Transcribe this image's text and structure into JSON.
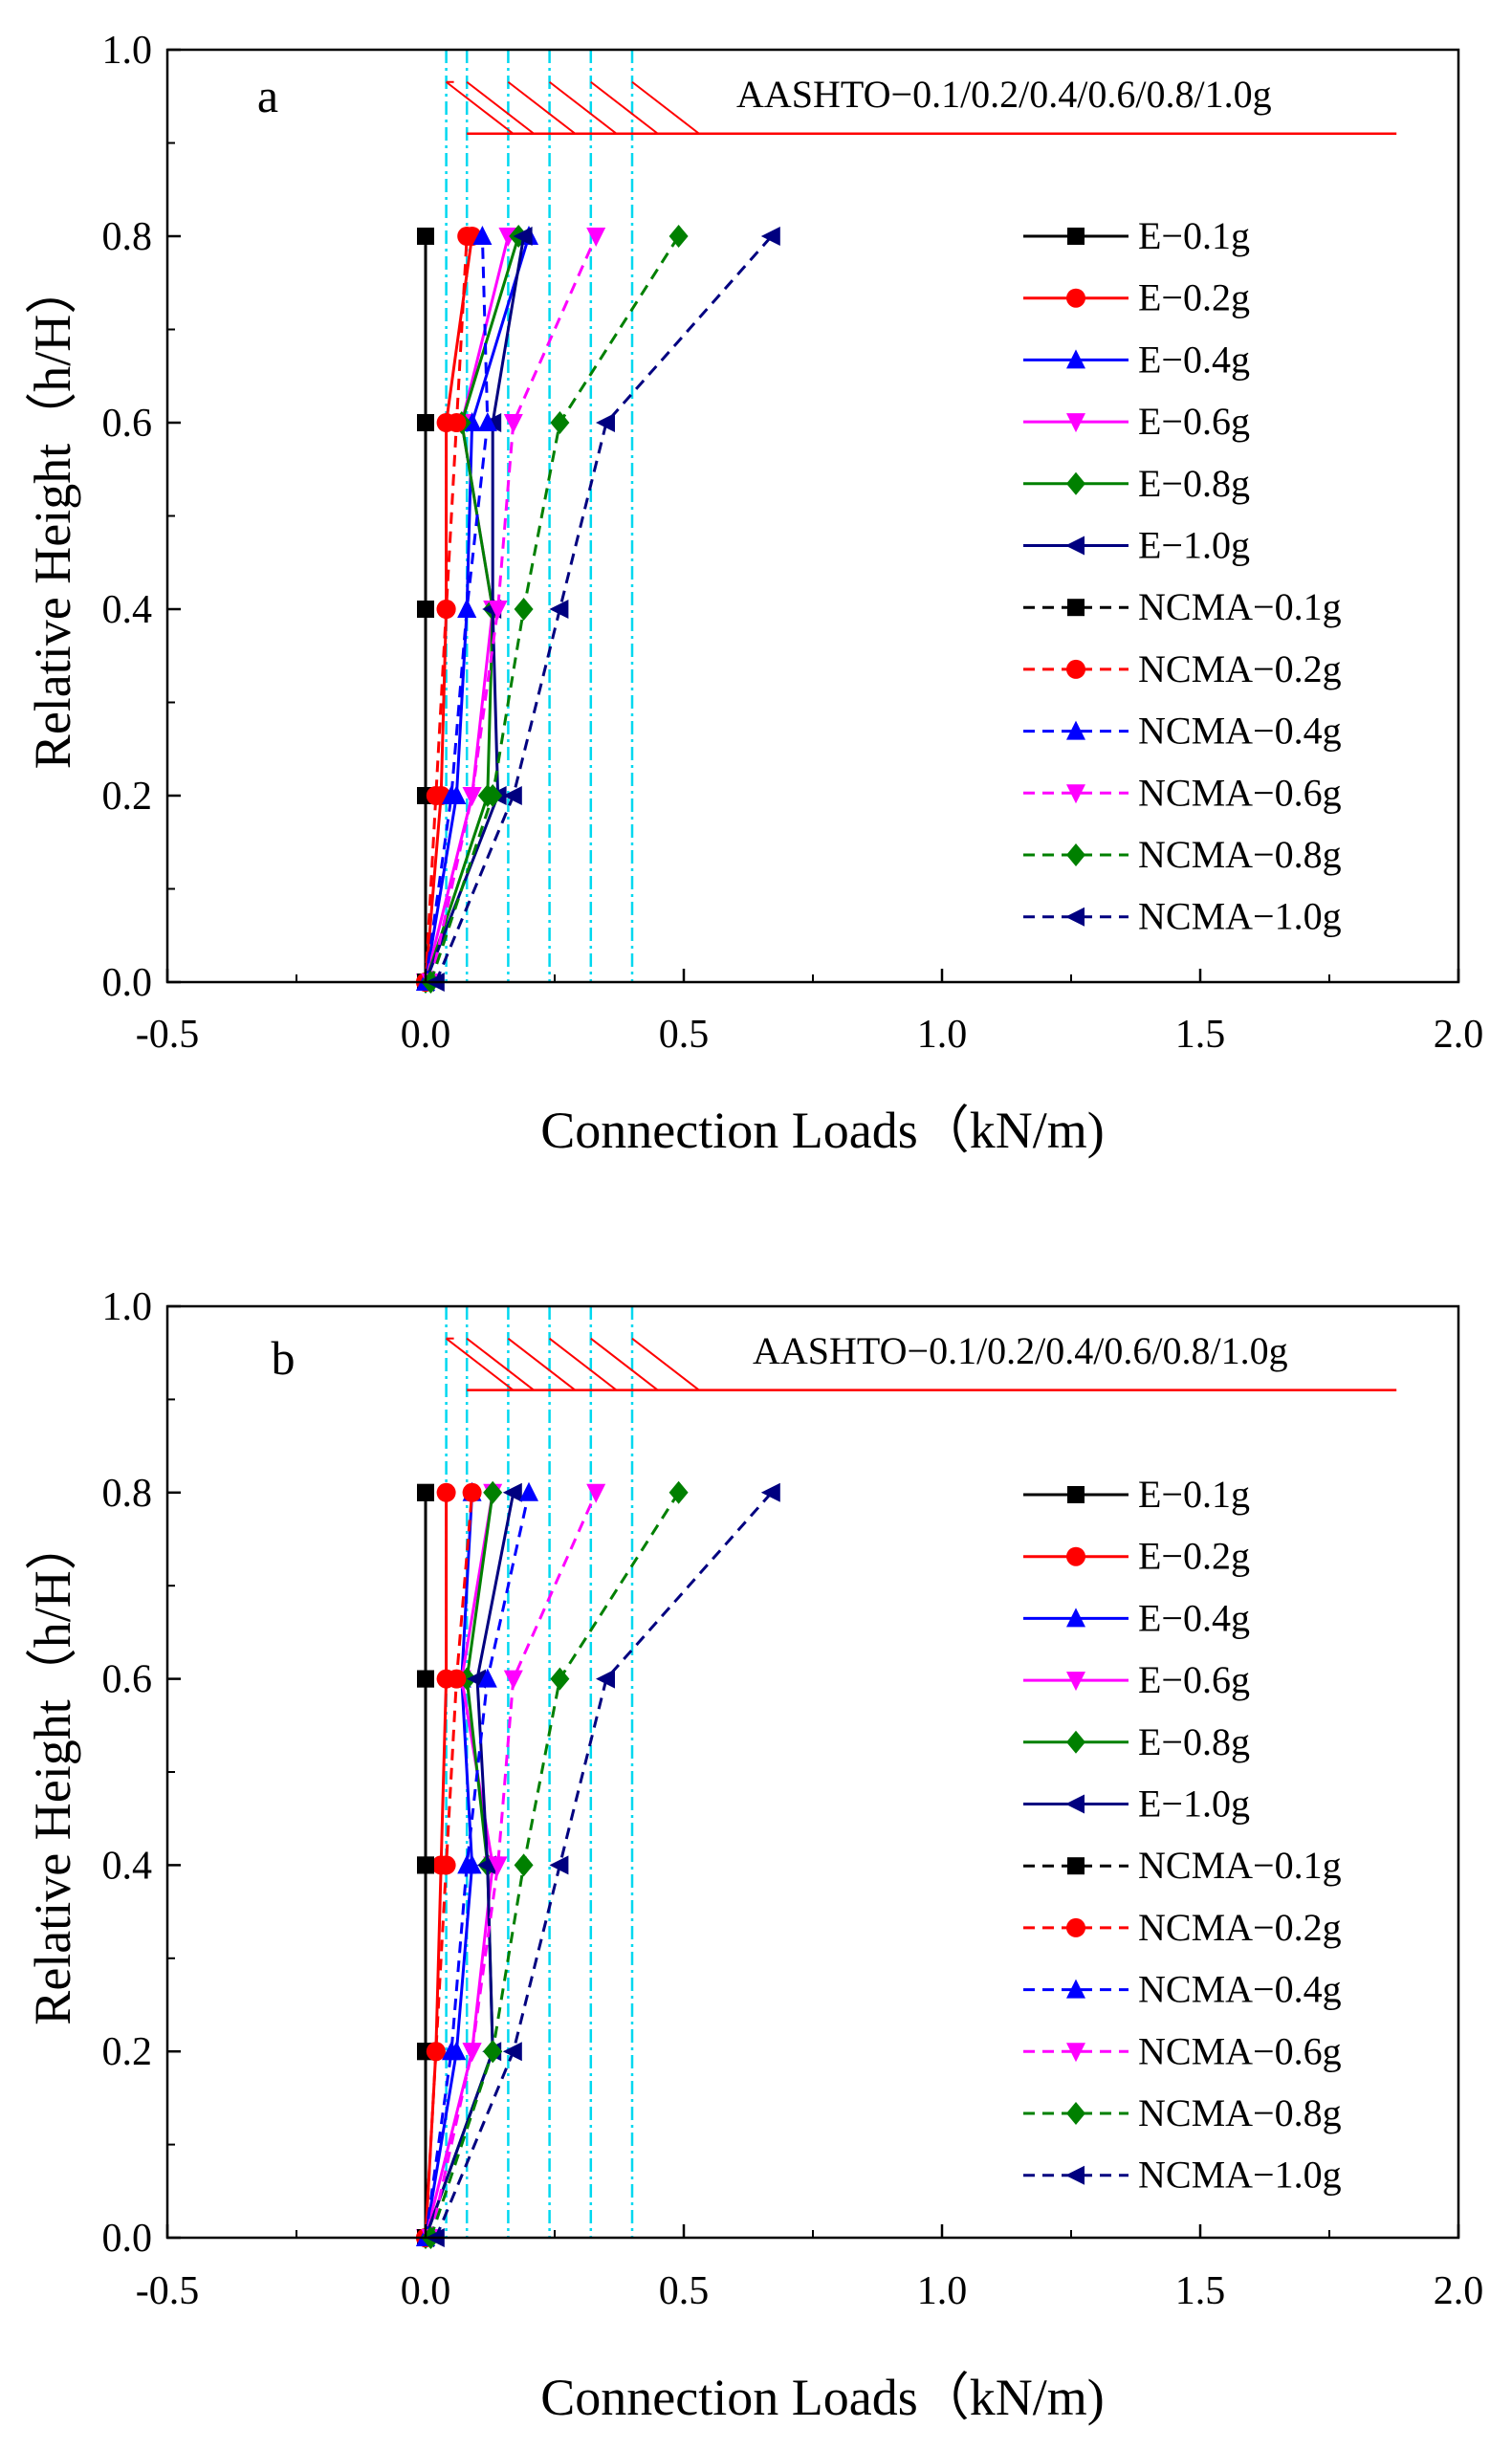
{
  "colors": {
    "aashto": "#ff0000",
    "cyan": "#00d8f0",
    "E-0.1g": "#000000",
    "E-0.2g": "#ff0000",
    "E-0.4g": "#0000ff",
    "E-0.6g": "#ff00ff",
    "E-0.8g": "#008000",
    "E-1.0g": "#000080"
  },
  "chart_data": [
    {
      "panel": "a",
      "type": "line",
      "xlabel": "Connection Loads（kN/m)",
      "ylabel": "Relative Height（h/H）",
      "xlim": [
        -0.5,
        2.0
      ],
      "ylim": [
        0.0,
        1.0
      ],
      "xticks": [
        "-0.5",
        "0.0",
        "0.5",
        "1.0",
        "1.5",
        "2.0"
      ],
      "yticks": [
        "0.0",
        "0.2",
        "0.4",
        "0.6",
        "0.8",
        "1.0"
      ],
      "y": [
        0.0,
        0.2,
        0.4,
        0.6,
        0.8
      ],
      "aashto": {
        "label": "AASHTO−0.1/0.2/0.4/0.6/0.8/1.0g",
        "y": 0.91,
        "x_end": 1.88,
        "reference_x": [
          0.04,
          0.08,
          0.16,
          0.24,
          0.32,
          0.4
        ]
      },
      "series": [
        {
          "name": "E−0.1g",
          "color_key": "E-0.1g",
          "marker": "square",
          "dash": false,
          "values": [
            0.0,
            0.0,
            0.0,
            0.0,
            0.0
          ]
        },
        {
          "name": "E−0.2g",
          "color_key": "E-0.2g",
          "marker": "circle",
          "dash": false,
          "values": [
            0.0,
            0.03,
            0.04,
            0.04,
            0.09
          ]
        },
        {
          "name": "E−0.4g",
          "color_key": "E-0.4g",
          "marker": "triangle-up",
          "dash": false,
          "values": [
            0.0,
            0.06,
            0.08,
            0.09,
            0.2
          ]
        },
        {
          "name": "E−0.6g",
          "color_key": "E-0.6g",
          "marker": "triangle-down",
          "dash": false,
          "values": [
            0.0,
            0.09,
            0.13,
            0.07,
            0.16
          ]
        },
        {
          "name": "E−0.8g",
          "color_key": "E-0.8g",
          "marker": "diamond",
          "dash": false,
          "values": [
            0.0,
            0.12,
            0.13,
            0.07,
            0.18
          ]
        },
        {
          "name": "E−1.0g",
          "color_key": "E-1.0g",
          "marker": "triangle-left",
          "dash": false,
          "values": [
            0.0,
            0.14,
            0.13,
            0.13,
            0.19
          ]
        },
        {
          "name": "NCMA−0.1g",
          "color_key": "E-0.1g",
          "marker": "square",
          "dash": true,
          "values": [
            0.0,
            0.0,
            0.0,
            0.0,
            0.0
          ]
        },
        {
          "name": "NCMA−0.2g",
          "color_key": "E-0.2g",
          "marker": "circle",
          "dash": true,
          "values": [
            0.0,
            0.02,
            0.04,
            0.06,
            0.08
          ]
        },
        {
          "name": "NCMA−0.4g",
          "color_key": "E-0.4g",
          "marker": "triangle-up",
          "dash": true,
          "values": [
            0.0,
            0.05,
            0.08,
            0.12,
            0.11
          ]
        },
        {
          "name": "NCMA−0.6g",
          "color_key": "E-0.6g",
          "marker": "triangle-down",
          "dash": true,
          "values": [
            0.01,
            0.09,
            0.14,
            0.17,
            0.33
          ]
        },
        {
          "name": "NCMA−0.8g",
          "color_key": "E-0.8g",
          "marker": "diamond",
          "dash": true,
          "values": [
            0.01,
            0.13,
            0.19,
            0.26,
            0.49
          ]
        },
        {
          "name": "NCMA−1.0g",
          "color_key": "E-1.0g",
          "marker": "triangle-left",
          "dash": true,
          "values": [
            0.02,
            0.17,
            0.26,
            0.35,
            0.67
          ]
        }
      ]
    },
    {
      "panel": "b",
      "type": "line",
      "xlabel": "Connection Loads（kN/m)",
      "ylabel": "Relative Height（h/H）",
      "xlim": [
        -0.5,
        2.0
      ],
      "ylim": [
        0.0,
        1.0
      ],
      "xticks": [
        "-0.5",
        "0.0",
        "0.5",
        "1.0",
        "1.5",
        "2.0"
      ],
      "yticks": [
        "0.0",
        "0.2",
        "0.4",
        "0.6",
        "0.8",
        "1.0"
      ],
      "y": [
        0.0,
        0.2,
        0.4,
        0.6,
        0.8
      ],
      "aashto": {
        "label": "AASHTO−0.1/0.2/0.4/0.6/0.8/1.0g",
        "y": 0.91,
        "x_end": 1.88,
        "reference_x": [
          0.04,
          0.08,
          0.16,
          0.24,
          0.32,
          0.4
        ]
      },
      "series": [
        {
          "name": "E−0.1g",
          "color_key": "E-0.1g",
          "marker": "square",
          "dash": false,
          "values": [
            0.0,
            0.0,
            0.0,
            0.0,
            0.0
          ]
        },
        {
          "name": "E−0.2g",
          "color_key": "E-0.2g",
          "marker": "circle",
          "dash": false,
          "values": [
            0.0,
            0.02,
            0.03,
            0.04,
            0.04
          ]
        },
        {
          "name": "E−0.4g",
          "color_key": "E-0.4g",
          "marker": "triangle-up",
          "dash": false,
          "values": [
            0.0,
            0.06,
            0.09,
            0.07,
            0.09
          ]
        },
        {
          "name": "E−0.6g",
          "color_key": "E-0.6g",
          "marker": "triangle-down",
          "dash": false,
          "values": [
            0.0,
            0.09,
            0.13,
            0.07,
            0.13
          ]
        },
        {
          "name": "E−0.8g",
          "color_key": "E-0.8g",
          "marker": "diamond",
          "dash": false,
          "values": [
            0.0,
            0.13,
            0.12,
            0.08,
            0.13
          ]
        },
        {
          "name": "E−1.0g",
          "color_key": "E-1.0g",
          "marker": "triangle-left",
          "dash": false,
          "values": [
            0.0,
            0.13,
            0.12,
            0.1,
            0.17
          ]
        },
        {
          "name": "NCMA−0.1g",
          "color_key": "E-0.1g",
          "marker": "square",
          "dash": true,
          "values": [
            0.0,
            0.0,
            0.0,
            0.0,
            0.0
          ]
        },
        {
          "name": "NCMA−0.2g",
          "color_key": "E-0.2g",
          "marker": "circle",
          "dash": true,
          "values": [
            0.0,
            0.02,
            0.04,
            0.06,
            0.09
          ]
        },
        {
          "name": "NCMA−0.4g",
          "color_key": "E-0.4g",
          "marker": "triangle-up",
          "dash": true,
          "values": [
            0.0,
            0.05,
            0.08,
            0.12,
            0.2
          ]
        },
        {
          "name": "NCMA−0.6g",
          "color_key": "E-0.6g",
          "marker": "triangle-down",
          "dash": true,
          "values": [
            0.01,
            0.09,
            0.14,
            0.17,
            0.33
          ]
        },
        {
          "name": "NCMA−0.8g",
          "color_key": "E-0.8g",
          "marker": "diamond",
          "dash": true,
          "values": [
            0.01,
            0.13,
            0.19,
            0.26,
            0.49
          ]
        },
        {
          "name": "NCMA−1.0g",
          "color_key": "E-1.0g",
          "marker": "triangle-left",
          "dash": true,
          "values": [
            0.02,
            0.17,
            0.26,
            0.35,
            0.67
          ]
        }
      ]
    }
  ]
}
